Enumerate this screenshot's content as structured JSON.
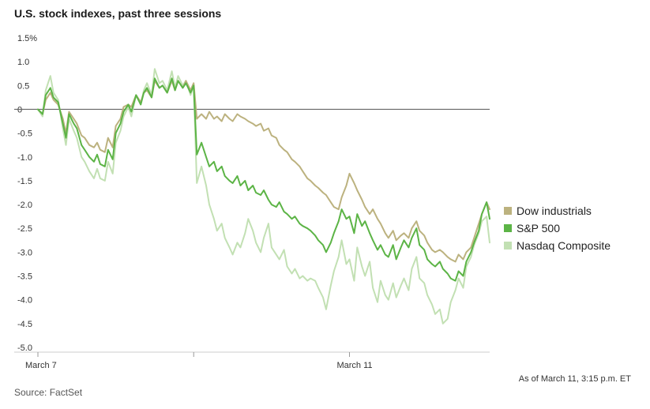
{
  "title": "U.S. stock indexes, past three sessions",
  "source": "Source: FactSet",
  "footnote": "As of March 11, 3:15 p.m. ET",
  "colors": {
    "dow": "#bcb27f",
    "sp500": "#5cb446",
    "nasdaq": "#c2e0b3",
    "zero_line": "#666666",
    "axis": "#cccccc"
  },
  "chart_data": {
    "type": "line",
    "title": "U.S. stock indexes, past three sessions",
    "ylabel": "",
    "xlabel": "",
    "ylim": [
      -5.0,
      1.5
    ],
    "yticks": [
      "1.5%",
      "1.0",
      "0.5",
      "0",
      "-0.5",
      "-1.0",
      "-1.5",
      "-2.0",
      "-2.5",
      "-3.0",
      "-3.5",
      "-4.0",
      "-4.5",
      "-5.0"
    ],
    "ytick_values": [
      1.5,
      1.0,
      0.5,
      0,
      -0.5,
      -1.0,
      -1.5,
      -2.0,
      -2.5,
      -3.0,
      -3.5,
      -4.0,
      -4.5,
      -5.0
    ],
    "xticks": [
      "March 7",
      "",
      "March 11"
    ],
    "xtick_positions": [
      0,
      100,
      200
    ],
    "xlim": [
      0,
      290
    ],
    "grid": false,
    "legend_position": "right",
    "series": [
      {
        "name": "Dow industrials",
        "color": "#bcb27f",
        "x": [
          0,
          3,
          5,
          8,
          10,
          13,
          16,
          18,
          20,
          23,
          25,
          28,
          30,
          33,
          36,
          38,
          40,
          43,
          45,
          48,
          50,
          53,
          55,
          58,
          60,
          63,
          66,
          68,
          70,
          73,
          75,
          78,
          80,
          83,
          86,
          88,
          90,
          93,
          95,
          98,
          100,
          102,
          105,
          108,
          110,
          113,
          115,
          118,
          120,
          123,
          125,
          128,
          130,
          133,
          135,
          138,
          140,
          143,
          145,
          148,
          150,
          153,
          155,
          158,
          160,
          163,
          165,
          168,
          170,
          173,
          175,
          178,
          180,
          183,
          185,
          188,
          190,
          193,
          195,
          198,
          200,
          203,
          205,
          208,
          210,
          213,
          215,
          218,
          220,
          223,
          225,
          228,
          230,
          233,
          235,
          238,
          240,
          243,
          245,
          248,
          250,
          253,
          255,
          258,
          260,
          263,
          265,
          268,
          270,
          273,
          275,
          278,
          280,
          283,
          285,
          288,
          290
        ],
        "values": [
          0.0,
          -0.1,
          0.2,
          0.35,
          0.2,
          0.1,
          -0.2,
          -0.5,
          -0.05,
          -0.2,
          -0.3,
          -0.55,
          -0.6,
          -0.75,
          -0.8,
          -0.7,
          -0.85,
          -0.9,
          -0.6,
          -0.8,
          -0.35,
          -0.2,
          0.05,
          0.1,
          0.05,
          0.3,
          0.15,
          0.35,
          0.4,
          0.25,
          0.6,
          0.45,
          0.5,
          0.35,
          0.6,
          0.4,
          0.6,
          0.45,
          0.6,
          0.4,
          0.55,
          -0.2,
          -0.1,
          -0.2,
          -0.05,
          -0.2,
          -0.15,
          -0.25,
          -0.1,
          -0.2,
          -0.25,
          -0.1,
          -0.15,
          -0.2,
          -0.25,
          -0.3,
          -0.35,
          -0.3,
          -0.45,
          -0.4,
          -0.55,
          -0.6,
          -0.75,
          -0.85,
          -0.9,
          -1.05,
          -1.1,
          -1.2,
          -1.3,
          -1.45,
          -1.5,
          -1.6,
          -1.65,
          -1.75,
          -1.8,
          -1.95,
          -2.05,
          -2.1,
          -1.85,
          -1.6,
          -1.35,
          -1.55,
          -1.7,
          -1.9,
          -2.05,
          -2.2,
          -2.1,
          -2.3,
          -2.4,
          -2.6,
          -2.7,
          -2.55,
          -2.75,
          -2.65,
          -2.6,
          -2.7,
          -2.5,
          -2.35,
          -2.55,
          -2.65,
          -2.8,
          -2.95,
          -3.0,
          -2.95,
          -3.0,
          -3.1,
          -3.15,
          -3.2,
          -3.05,
          -3.15,
          -3.0,
          -2.9,
          -2.7,
          -2.4,
          -2.2,
          -1.95,
          -2.1
        ]
      },
      {
        "name": "S&P 500",
        "color": "#5cb446",
        "x": [
          0,
          3,
          5,
          8,
          10,
          13,
          16,
          18,
          20,
          23,
          25,
          28,
          30,
          33,
          36,
          38,
          40,
          43,
          45,
          48,
          50,
          53,
          55,
          58,
          60,
          63,
          66,
          68,
          70,
          73,
          75,
          78,
          80,
          83,
          86,
          88,
          90,
          93,
          95,
          98,
          100,
          102,
          105,
          108,
          110,
          113,
          115,
          118,
          120,
          123,
          125,
          128,
          130,
          133,
          135,
          138,
          140,
          143,
          145,
          148,
          150,
          153,
          155,
          158,
          160,
          163,
          165,
          168,
          170,
          173,
          175,
          178,
          180,
          183,
          185,
          188,
          190,
          193,
          195,
          198,
          200,
          203,
          205,
          208,
          210,
          213,
          215,
          218,
          220,
          223,
          225,
          228,
          230,
          233,
          235,
          238,
          240,
          243,
          245,
          248,
          250,
          253,
          255,
          258,
          260,
          263,
          265,
          268,
          270,
          273,
          275,
          278,
          280,
          283,
          285,
          288,
          290
        ],
        "values": [
          0.0,
          -0.1,
          0.3,
          0.45,
          0.25,
          0.15,
          -0.3,
          -0.6,
          -0.1,
          -0.3,
          -0.4,
          -0.75,
          -0.85,
          -1.0,
          -1.1,
          -0.95,
          -1.15,
          -1.2,
          -0.85,
          -1.05,
          -0.5,
          -0.3,
          -0.05,
          0.1,
          -0.05,
          0.3,
          0.1,
          0.35,
          0.45,
          0.25,
          0.65,
          0.45,
          0.5,
          0.35,
          0.65,
          0.4,
          0.6,
          0.45,
          0.55,
          0.35,
          0.5,
          -0.95,
          -0.7,
          -1.0,
          -1.2,
          -1.1,
          -1.3,
          -1.2,
          -1.4,
          -1.5,
          -1.55,
          -1.4,
          -1.6,
          -1.5,
          -1.7,
          -1.6,
          -1.75,
          -1.8,
          -1.7,
          -1.9,
          -2.0,
          -2.05,
          -1.95,
          -2.15,
          -2.2,
          -2.3,
          -2.25,
          -2.4,
          -2.45,
          -2.5,
          -2.55,
          -2.65,
          -2.75,
          -2.85,
          -3.0,
          -2.8,
          -2.6,
          -2.35,
          -2.1,
          -2.3,
          -2.25,
          -2.6,
          -2.2,
          -2.45,
          -2.35,
          -2.6,
          -2.75,
          -2.95,
          -2.85,
          -3.05,
          -3.1,
          -2.85,
          -3.15,
          -2.9,
          -2.75,
          -2.9,
          -2.7,
          -2.5,
          -2.85,
          -2.95,
          -3.15,
          -3.25,
          -3.3,
          -3.2,
          -3.35,
          -3.45,
          -3.55,
          -3.6,
          -3.4,
          -3.5,
          -3.2,
          -3.0,
          -2.8,
          -2.55,
          -2.2,
          -1.95,
          -2.3
        ]
      },
      {
        "name": "Nasdaq Composite",
        "color": "#c2e0b3",
        "x": [
          0,
          3,
          5,
          8,
          10,
          13,
          16,
          18,
          20,
          23,
          25,
          28,
          30,
          33,
          36,
          38,
          40,
          43,
          45,
          48,
          50,
          53,
          55,
          58,
          60,
          63,
          66,
          68,
          70,
          73,
          75,
          78,
          80,
          83,
          86,
          88,
          90,
          93,
          95,
          98,
          100,
          102,
          105,
          108,
          110,
          113,
          115,
          118,
          120,
          123,
          125,
          128,
          130,
          133,
          135,
          138,
          140,
          143,
          145,
          148,
          150,
          153,
          155,
          158,
          160,
          163,
          165,
          168,
          170,
          173,
          175,
          178,
          180,
          183,
          185,
          188,
          190,
          193,
          195,
          198,
          200,
          203,
          205,
          208,
          210,
          213,
          215,
          218,
          220,
          223,
          225,
          228,
          230,
          233,
          235,
          238,
          240,
          243,
          245,
          248,
          250,
          253,
          255,
          258,
          260,
          263,
          265,
          268,
          270,
          273,
          275,
          278,
          280,
          283,
          285,
          288,
          290
        ],
        "values": [
          0.0,
          -0.15,
          0.4,
          0.7,
          0.35,
          0.2,
          -0.4,
          -0.75,
          -0.2,
          -0.45,
          -0.6,
          -1.0,
          -1.1,
          -1.3,
          -1.45,
          -1.25,
          -1.45,
          -1.5,
          -1.1,
          -1.35,
          -0.7,
          -0.45,
          -0.15,
          0.05,
          -0.15,
          0.3,
          0.1,
          0.4,
          0.55,
          0.3,
          0.85,
          0.55,
          0.6,
          0.4,
          0.8,
          0.45,
          0.7,
          0.5,
          0.6,
          0.3,
          0.5,
          -1.55,
          -1.2,
          -1.6,
          -2.0,
          -2.3,
          -2.55,
          -2.4,
          -2.7,
          -2.9,
          -3.05,
          -2.8,
          -2.9,
          -2.6,
          -2.3,
          -2.55,
          -2.8,
          -3.0,
          -2.7,
          -2.4,
          -2.9,
          -3.05,
          -3.15,
          -2.95,
          -3.3,
          -3.45,
          -3.35,
          -3.55,
          -3.5,
          -3.6,
          -3.55,
          -3.6,
          -3.75,
          -3.95,
          -4.2,
          -3.7,
          -3.4,
          -3.1,
          -2.75,
          -3.25,
          -3.15,
          -3.6,
          -2.9,
          -3.3,
          -3.5,
          -3.2,
          -3.75,
          -4.05,
          -3.6,
          -3.9,
          -4.0,
          -3.65,
          -3.95,
          -3.7,
          -3.55,
          -3.8,
          -3.35,
          -3.1,
          -3.55,
          -3.65,
          -3.9,
          -4.1,
          -4.3,
          -4.2,
          -4.5,
          -4.4,
          -4.05,
          -3.8,
          -3.55,
          -3.75,
          -3.3,
          -3.1,
          -2.85,
          -2.6,
          -2.35,
          -2.25,
          -2.8
        ]
      }
    ]
  }
}
